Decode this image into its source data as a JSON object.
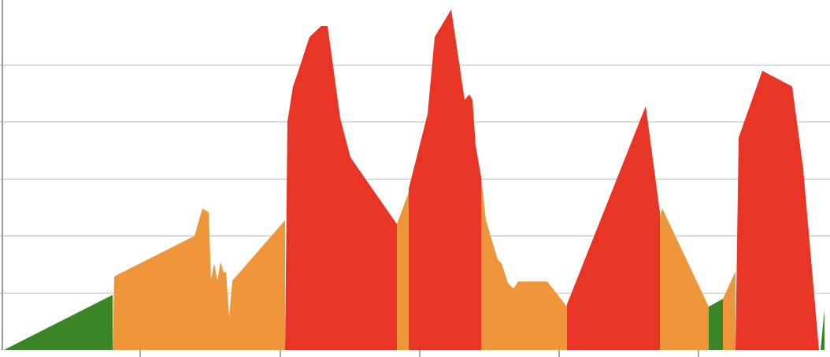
{
  "chart_data": {
    "type": "area",
    "xlim": [
      0,
      1054
    ],
    "ylim": [
      0,
      445
    ],
    "xticks": [
      178,
      356,
      533,
      710,
      887
    ],
    "yticks": [
      72,
      145,
      217,
      290,
      362
    ],
    "grid": true,
    "series": [
      {
        "color": "#3a8526",
        "x": [
          5,
          143,
          143
        ],
        "values": [
          0,
          70,
          0
        ]
      },
      {
        "color": "#f0963a",
        "x": [
          143,
          145,
          148,
          247,
          257,
          265,
          268,
          272,
          276,
          280,
          284,
          287,
          291,
          295,
          362,
          362
        ],
        "values": [
          0,
          93,
          95,
          145,
          180,
          175,
          90,
          110,
          88,
          112,
          98,
          100,
          42,
          88,
          165,
          0
        ]
      },
      {
        "color": "#e83526",
        "x": [
          362,
          365,
          372,
          378,
          393,
          408,
          416,
          432,
          445,
          504,
          504
        ],
        "values": [
          0,
          290,
          335,
          352,
          398,
          412,
          412,
          295,
          245,
          160,
          0
        ]
      },
      {
        "color": "#f0963a",
        "x": [
          504,
          504,
          519,
          519
        ],
        "values": [
          0,
          160,
          200,
          0
        ]
      },
      {
        "color": "#e83526",
        "x": [
          519,
          519,
          543,
          552,
          573,
          590,
          596,
          600,
          604,
          611,
          611
        ],
        "values": [
          0,
          205,
          300,
          398,
          433,
          318,
          325,
          318,
          260,
          220,
          0
        ]
      },
      {
        "color": "#f0963a",
        "x": [
          611,
          611,
          617,
          632,
          637,
          645,
          652,
          658,
          695,
          720,
          720
        ],
        "values": [
          0,
          220,
          165,
          115,
          110,
          85,
          78,
          87,
          87,
          55,
          0
        ]
      },
      {
        "color": "#e83526",
        "x": [
          720,
          720,
          820,
          838,
          838
        ],
        "values": [
          0,
          58,
          310,
          175,
          0
        ]
      },
      {
        "color": "#f0963a",
        "x": [
          838,
          838,
          841,
          900,
          900
        ],
        "values": [
          0,
          170,
          180,
          55,
          0
        ]
      },
      {
        "color": "#3a8526",
        "x": [
          900,
          900,
          918,
          918
        ],
        "values": [
          0,
          55,
          65,
          0
        ]
      },
      {
        "color": "#f0963a",
        "x": [
          918,
          918,
          934,
          934
        ],
        "values": [
          0,
          65,
          100,
          0
        ]
      },
      {
        "color": "#e83526",
        "x": [
          934,
          938,
          968,
          1006,
          1020,
          1040
        ],
        "values": [
          0,
          270,
          355,
          335,
          230,
          0
        ]
      },
      {
        "color": "#3a8526",
        "x": [
          1042,
          1047,
          1047
        ],
        "values": [
          0,
          52,
          0
        ]
      }
    ]
  }
}
